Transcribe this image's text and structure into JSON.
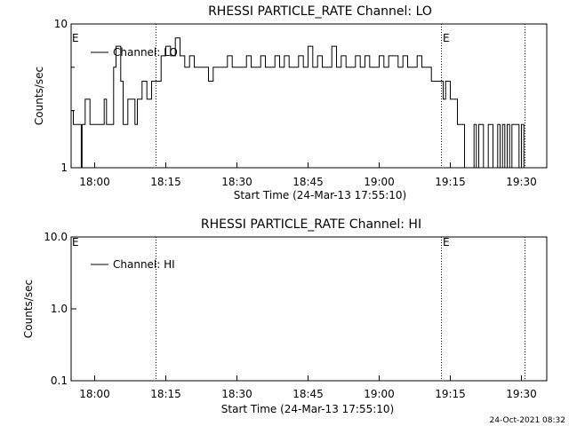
{
  "footer": {
    "date": "24-Oct-2021 08:32"
  },
  "chart_data": [
    {
      "type": "line",
      "title": "RHESSI PARTICLE_RATE Channel: LO",
      "xlabel": "Start Time (24-Mar-13 17:55:10)",
      "ylabel": "Counts/sec",
      "yscale": "log",
      "ylim": [
        1,
        10
      ],
      "xlim": [
        "17:55:10",
        "19:35"
      ],
      "x_ticks": [
        "18:00",
        "18:15",
        "18:30",
        "18:45",
        "19:00",
        "19:15",
        "19:30"
      ],
      "y_ticks": [
        "1",
        "10"
      ],
      "legend": "Channel: LO",
      "legend_position": "top-left",
      "vlines": [
        {
          "x": "18:13",
          "marker": ""
        },
        {
          "x": "19:13",
          "marker": "E"
        },
        {
          "x": "19:30.5",
          "marker": ""
        }
      ],
      "left_marker": "E",
      "series": [
        {
          "values": [
            [
              "17:55:10",
              2.5
            ],
            [
              "17:55:30",
              2
            ],
            [
              "17:57",
              2
            ],
            [
              "17:57:10",
              1
            ],
            [
              "17:57:20",
              2
            ],
            [
              "17:58",
              3
            ],
            [
              "17:59",
              2
            ],
            [
              "18:01",
              2
            ],
            [
              "18:02",
              3
            ],
            [
              "18:02:30",
              2
            ],
            [
              "18:04",
              5
            ],
            [
              "18:04:30",
              7
            ],
            [
              "18:05:30",
              4
            ],
            [
              "18:06",
              2
            ],
            [
              "18:07",
              3
            ],
            [
              "18:08",
              3
            ],
            [
              "18:08:30",
              2
            ],
            [
              "18:09",
              3
            ],
            [
              "18:10",
              4
            ],
            [
              "18:11",
              3
            ],
            [
              "18:12",
              4
            ],
            [
              "18:13",
              4
            ],
            [
              "18:14",
              6
            ],
            [
              "18:15",
              7
            ],
            [
              "18:16",
              6
            ],
            [
              "18:17",
              8
            ],
            [
              "18:18",
              6
            ],
            [
              "18:19",
              5
            ],
            [
              "18:20",
              6
            ],
            [
              "18:21",
              5
            ],
            [
              "18:23",
              5
            ],
            [
              "18:24",
              4
            ],
            [
              "18:25",
              5
            ],
            [
              "18:27",
              5
            ],
            [
              "18:28",
              6
            ],
            [
              "18:29",
              5
            ],
            [
              "18:31",
              5
            ],
            [
              "18:32",
              6
            ],
            [
              "18:33",
              5
            ],
            [
              "18:35",
              6
            ],
            [
              "18:36",
              5
            ],
            [
              "18:38",
              6
            ],
            [
              "18:39",
              5
            ],
            [
              "18:40",
              6
            ],
            [
              "18:41",
              5
            ],
            [
              "18:43",
              6
            ],
            [
              "18:44",
              5
            ],
            [
              "18:45",
              7
            ],
            [
              "18:46",
              5
            ],
            [
              "18:47",
              6
            ],
            [
              "18:48",
              5
            ],
            [
              "18:50",
              7
            ],
            [
              "18:51",
              5
            ],
            [
              "18:52",
              6
            ],
            [
              "18:53",
              5
            ],
            [
              "18:55",
              6
            ],
            [
              "18:56",
              5
            ],
            [
              "18:57",
              6
            ],
            [
              "18:58",
              5
            ],
            [
              "19:00",
              6
            ],
            [
              "19:01",
              5
            ],
            [
              "19:02",
              6
            ],
            [
              "19:04",
              5
            ],
            [
              "19:05",
              6
            ],
            [
              "19:06",
              5
            ],
            [
              "19:08",
              6
            ],
            [
              "19:09",
              5
            ],
            [
              "19:10",
              5
            ],
            [
              "19:11",
              4
            ],
            [
              "19:12",
              4
            ],
            [
              "19:13",
              4
            ],
            [
              "19:13:30",
              3
            ],
            [
              "19:14",
              4
            ],
            [
              "19:15",
              3
            ],
            [
              "19:16",
              3
            ],
            [
              "19:16:30",
              2
            ],
            [
              "19:17",
              2
            ],
            [
              "19:18",
              1
            ],
            [
              "19:19",
              1
            ],
            [
              "19:20",
              2
            ],
            [
              "19:20:30",
              1
            ],
            [
              "19:21",
              2
            ],
            [
              "19:22",
              1
            ],
            [
              "19:23",
              2
            ],
            [
              "19:24",
              1
            ],
            [
              "19:25",
              2
            ],
            [
              "19:25:30",
              1
            ],
            [
              "19:26",
              2
            ],
            [
              "19:26:30",
              1
            ],
            [
              "19:27",
              2
            ],
            [
              "19:27:30",
              1
            ],
            [
              "19:28",
              2
            ],
            [
              "19:29",
              2
            ],
            [
              "19:29:30",
              1
            ],
            [
              "19:30",
              2
            ],
            [
              "19:30:30",
              1
            ]
          ]
        }
      ]
    },
    {
      "type": "line",
      "title": "RHESSI PARTICLE_RATE Channel: HI",
      "xlabel": "Start Time (24-Mar-13 17:55:10)",
      "ylabel": "Counts/sec",
      "yscale": "log",
      "ylim": [
        0.1,
        10
      ],
      "xlim": [
        "17:55:10",
        "19:35"
      ],
      "x_ticks": [
        "18:00",
        "18:15",
        "18:30",
        "18:45",
        "19:00",
        "19:15",
        "19:30"
      ],
      "y_ticks": [
        "10.0",
        "1.0",
        "0.1"
      ],
      "legend": "Channel: HI",
      "legend_position": "top-left",
      "vlines": [
        {
          "x": "18:13",
          "marker": ""
        },
        {
          "x": "19:13",
          "marker": "E"
        },
        {
          "x": "19:30.5",
          "marker": ""
        }
      ],
      "left_marker": "E",
      "series": []
    }
  ]
}
